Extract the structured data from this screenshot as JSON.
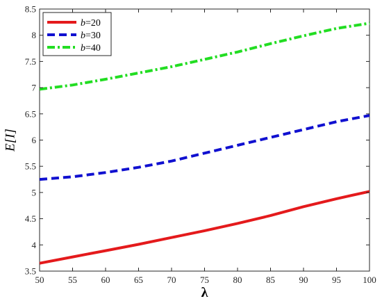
{
  "chart_data": {
    "type": "line",
    "xlabel": "λ",
    "ylabel": "E[I]",
    "xlim": [
      50,
      100
    ],
    "ylim": [
      3.5,
      8.5
    ],
    "xticks": [
      50,
      55,
      60,
      65,
      70,
      75,
      80,
      85,
      90,
      95,
      100
    ],
    "yticks": [
      3.5,
      4,
      4.5,
      5,
      5.5,
      6,
      6.5,
      7,
      7.5,
      8,
      8.5
    ],
    "grid": false,
    "legend_position": "top-left",
    "x": [
      50,
      55,
      60,
      65,
      70,
      75,
      80,
      85,
      90,
      95,
      100
    ],
    "series": [
      {
        "name": "b=20",
        "name_italic": "b",
        "name_rest": "=20",
        "color": "#e41a1c",
        "style": "solid",
        "values": [
          3.65,
          3.77,
          3.89,
          4.01,
          4.14,
          4.27,
          4.41,
          4.56,
          4.73,
          4.88,
          5.02
        ]
      },
      {
        "name": "b=30",
        "name_italic": "b",
        "name_rest": "=30",
        "color": "#1010d0",
        "style": "dashed",
        "values": [
          5.25,
          5.3,
          5.38,
          5.48,
          5.6,
          5.75,
          5.9,
          6.05,
          6.2,
          6.35,
          6.47
        ]
      },
      {
        "name": "b=40",
        "name_italic": "b",
        "name_rest": "=40",
        "color": "#22dd22",
        "style": "dashdot",
        "values": [
          6.97,
          7.05,
          7.16,
          7.28,
          7.4,
          7.54,
          7.68,
          7.84,
          7.99,
          8.13,
          8.23
        ]
      }
    ]
  }
}
